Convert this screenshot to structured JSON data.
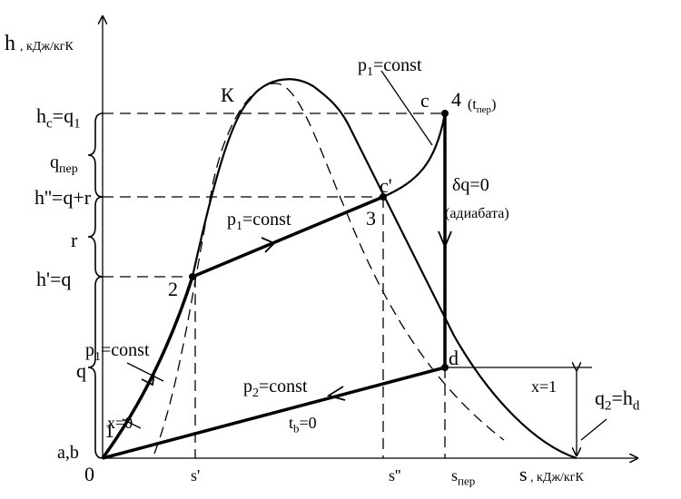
{
  "labels": [
    [
      "h"
    ],
    [
      ", кДж/кгК"
    ],
    [
      "s"
    ],
    [
      ", кДж/кгК"
    ],
    [
      "0"
    ],
    [
      "a,b"
    ],
    [
      "1"
    ],
    [
      "2"
    ],
    [
      "3"
    ],
    [
      "4"
    ],
    [
      "(t",
      {
        "sub": "пер"
      },
      ")"
    ],
    [
      "c"
    ],
    [
      "c'"
    ],
    [
      "К"
    ],
    [
      "d"
    ],
    [
      "h",
      {
        "sub": "c"
      },
      "=q",
      {
        "sub": "1"
      }
    ],
    [
      "q",
      {
        "sub": "пер"
      }
    ],
    [
      "h''=q+r"
    ],
    [
      "r"
    ],
    [
      "h'=q"
    ],
    [
      "q"
    ],
    [
      "p",
      {
        "sub": "1"
      },
      "=const"
    ],
    [
      "p",
      {
        "sub": "1"
      },
      "=const"
    ],
    [
      "p",
      {
        "sub": "1"
      },
      "=const"
    ],
    [
      "p",
      {
        "sub": "2"
      },
      "=const"
    ],
    [
      "t",
      {
        "sub": "b"
      },
      "=0"
    ],
    [
      "x=0"
    ],
    [
      "x=1"
    ],
    [
      "δq=0"
    ],
    [
      "(адиабата)"
    ],
    [
      "q",
      {
        "sub": "2"
      },
      "=h",
      {
        "sub": "d"
      }
    ],
    [
      "s'"
    ],
    [
      "s''"
    ],
    [
      "s",
      {
        "sub": "пер"
      }
    ]
  ]
}
